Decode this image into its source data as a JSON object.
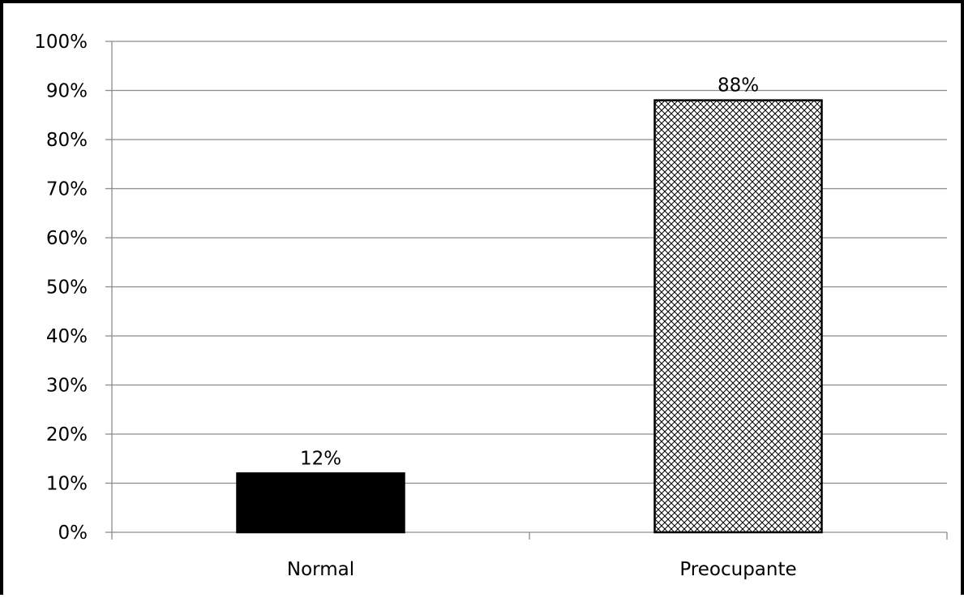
{
  "chart_data": {
    "type": "bar",
    "categories": [
      "Normal",
      "Preocupante"
    ],
    "values": [
      12,
      88
    ],
    "data_labels": [
      "12%",
      "88%"
    ],
    "title": "",
    "xlabel": "",
    "ylabel": "",
    "ylim": [
      0,
      100
    ],
    "yticks": [
      0,
      10,
      20,
      30,
      40,
      50,
      60,
      70,
      80,
      90,
      100
    ],
    "ytick_labels": [
      "0%",
      "10%",
      "20%",
      "30%",
      "40%",
      "50%",
      "60%",
      "70%",
      "80%",
      "90%",
      "100%"
    ],
    "grid": true,
    "legend": "none",
    "bar_styles": [
      {
        "fill": "solid",
        "color": "#000000"
      },
      {
        "fill": "crosshatch",
        "color": "#000000"
      }
    ]
  }
}
